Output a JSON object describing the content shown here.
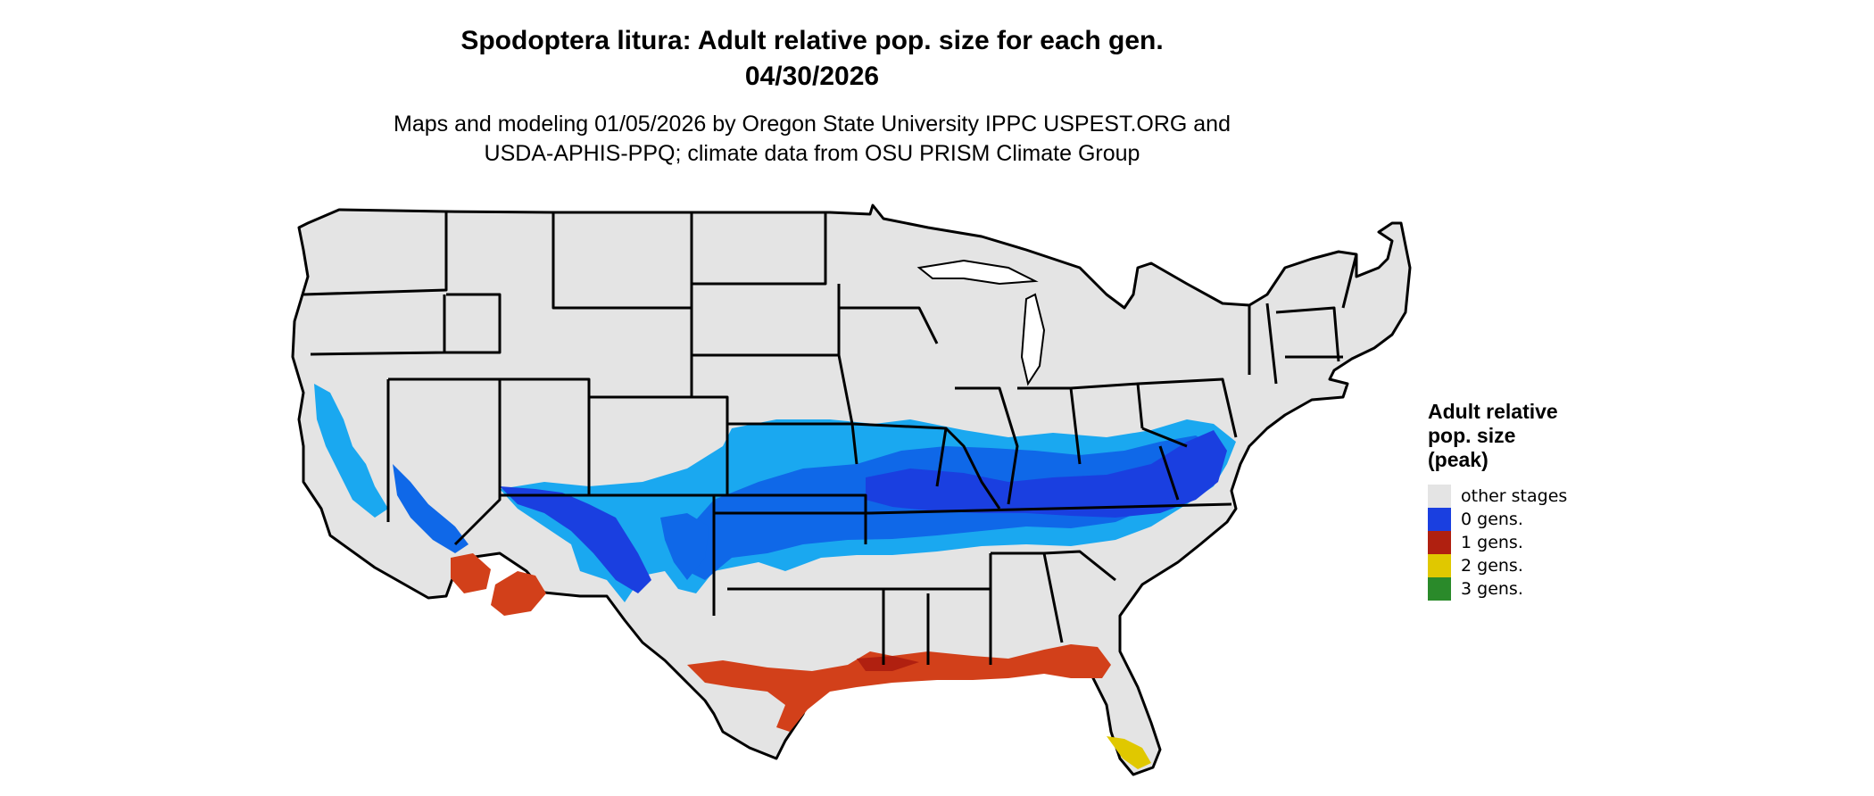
{
  "title": {
    "line1": "Spodoptera litura: Adult relative pop. size for each gen.",
    "line2": "04/30/2026"
  },
  "subtitle": {
    "line1": "Maps and modeling 01/05/2026 by Oregon State University IPPC USPEST.ORG and",
    "line2": "USDA-APHIS-PPQ; climate data from OSU PRISM Climate Group"
  },
  "legend": {
    "title_lines": [
      "Adult relative",
      "pop. size",
      "(peak)"
    ],
    "items": [
      {
        "label": "other stages",
        "color": "#e4e4e4"
      },
      {
        "label": "0 gens.",
        "color": "#1a3fe0"
      },
      {
        "label": "1 gens.",
        "color": "#b02010"
      },
      {
        "label": "2 gens.",
        "color": "#e0c800"
      },
      {
        "label": "3 gens.",
        "color": "#2a8a2a"
      }
    ]
  },
  "map": {
    "region": "Contiguous United States",
    "base_color": "#e4e4e4",
    "border_color": "#000000",
    "zones": [
      {
        "name": "light-blue adult band",
        "color": "#1aa8f0"
      },
      {
        "name": "medium-blue adult band",
        "color": "#0f68e8"
      },
      {
        "name": "dark-blue 0 gens.",
        "color": "#1a3fe0"
      },
      {
        "name": "red-orange 1 gens.",
        "color": "#d2401a"
      },
      {
        "name": "yellow 2 gens.",
        "color": "#e0c800"
      }
    ]
  }
}
